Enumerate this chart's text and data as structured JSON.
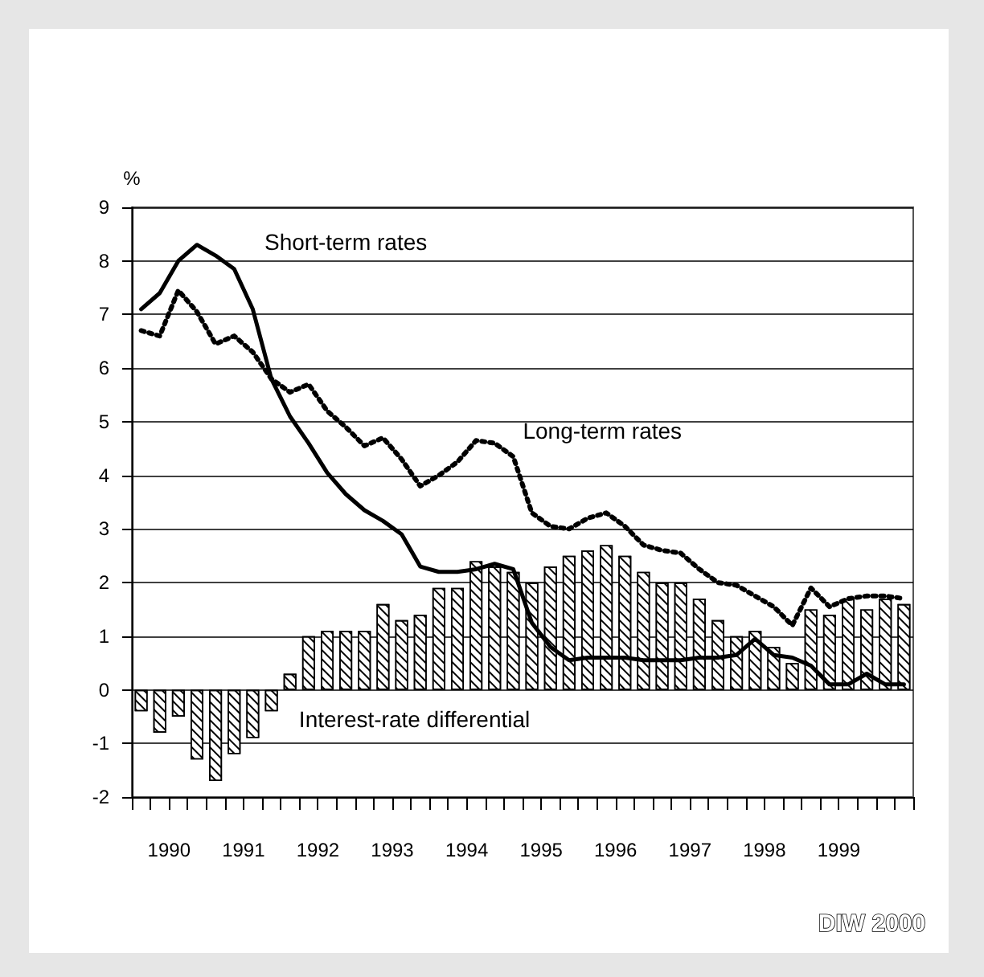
{
  "chart_data": {
    "type": "bar",
    "ylabel": "%",
    "xlim": [
      1990,
      2000.5
    ],
    "ylim": [
      -2,
      9
    ],
    "yticks": [
      -2,
      -1,
      0,
      1,
      2,
      3,
      4,
      5,
      6,
      7,
      8,
      9
    ],
    "grid": "y",
    "xticks": [
      {
        "value": 1990,
        "label": null
      },
      {
        "value": 1990.25,
        "label": null
      },
      {
        "value": 1990.5,
        "label": "1990"
      },
      {
        "value": 1990.75,
        "label": null
      },
      {
        "value": 1991,
        "label": null
      },
      {
        "value": 1991.25,
        "label": null
      },
      {
        "value": 1991.5,
        "label": "1991"
      },
      {
        "value": 1991.75,
        "label": null
      },
      {
        "value": 1992,
        "label": null
      },
      {
        "value": 1992.25,
        "label": null
      },
      {
        "value": 1992.5,
        "label": "1992"
      },
      {
        "value": 1992.75,
        "label": null
      },
      {
        "value": 1993,
        "label": null
      },
      {
        "value": 1993.25,
        "label": null
      },
      {
        "value": 1993.5,
        "label": "1993"
      },
      {
        "value": 1993.75,
        "label": null
      },
      {
        "value": 1994,
        "label": null
      },
      {
        "value": 1994.25,
        "label": null
      },
      {
        "value": 1994.5,
        "label": "1994"
      },
      {
        "value": 1994.75,
        "label": null
      },
      {
        "value": 1995,
        "label": null
      },
      {
        "value": 1995.25,
        "label": null
      },
      {
        "value": 1995.5,
        "label": "1995"
      },
      {
        "value": 1995.75,
        "label": null
      },
      {
        "value": 1996,
        "label": null
      },
      {
        "value": 1996.25,
        "label": null
      },
      {
        "value": 1996.5,
        "label": "1996"
      },
      {
        "value": 1996.75,
        "label": null
      },
      {
        "value": 1997,
        "label": null
      },
      {
        "value": 1997.25,
        "label": null
      },
      {
        "value": 1997.5,
        "label": "1997"
      },
      {
        "value": 1997.75,
        "label": null
      },
      {
        "value": 1998,
        "label": null
      },
      {
        "value": 1998.25,
        "label": null
      },
      {
        "value": 1998.5,
        "label": "1998"
      },
      {
        "value": 1998.75,
        "label": null
      },
      {
        "value": 1999,
        "label": null
      },
      {
        "value": 1999.25,
        "label": null
      },
      {
        "value": 1999.5,
        "label": "1999"
      },
      {
        "value": 1999.75,
        "label": null
      },
      {
        "value": 2000,
        "label": null
      },
      {
        "value": 2000.25,
        "label": null
      },
      {
        "value": 2000.5,
        "label": null
      }
    ],
    "x": [
      1990.125,
      1990.375,
      1990.625,
      1990.875,
      1991.125,
      1991.375,
      1991.625,
      1991.875,
      1992.125,
      1992.375,
      1992.625,
      1992.875,
      1993.125,
      1993.375,
      1993.625,
      1993.875,
      1994.125,
      1994.375,
      1994.625,
      1994.875,
      1995.125,
      1995.375,
      1995.625,
      1995.875,
      1996.125,
      1996.375,
      1996.625,
      1996.875,
      1997.125,
      1997.375,
      1997.625,
      1997.875,
      1998.125,
      1998.375,
      1998.625,
      1998.875,
      1999.125,
      1999.375,
      1999.625,
      1999.875,
      2000.125,
      2000.375
    ],
    "series": [
      {
        "name": "Interest-rate differential",
        "color": "#000000",
        "values": [
          -0.4,
          -0.8,
          -0.5,
          -1.3,
          -1.7,
          -1.2,
          -0.9,
          -0.4,
          0.3,
          1.0,
          1.1,
          1.1,
          1.1,
          1.6,
          1.3,
          1.4,
          1.9,
          1.9,
          2.4,
          2.3,
          2.2,
          2.0,
          2.3,
          2.5,
          2.6,
          2.7,
          2.5,
          2.2,
          2.0,
          2.0,
          1.7,
          1.3,
          1.0,
          1.1,
          0.8,
          0.5,
          1.5,
          1.4,
          1.7,
          1.5,
          1.7,
          1.6
        ]
      },
      {
        "name": "Short-term rates",
        "type": "line",
        "color": "#000000",
        "line_style": "solid",
        "values": [
          7.1,
          7.4,
          8.0,
          8.3,
          8.1,
          7.85,
          7.1,
          5.8,
          5.1,
          4.6,
          4.05,
          3.65,
          3.35,
          3.15,
          2.9,
          2.3,
          2.2,
          2.2,
          2.25,
          2.35,
          2.25,
          1.25,
          0.8,
          0.55,
          0.6,
          0.6,
          0.6,
          0.55,
          0.55,
          0.55,
          0.6,
          0.6,
          0.65,
          0.95,
          0.65,
          0.6,
          0.45,
          0.1,
          0.1,
          0.3,
          0.1,
          0.1
        ]
      },
      {
        "name": "Long-term rates",
        "type": "line",
        "color": "#000000",
        "line_style": "dotted",
        "values": [
          6.7,
          6.6,
          7.45,
          7.05,
          6.45,
          6.6,
          6.3,
          5.8,
          5.55,
          5.7,
          5.2,
          4.9,
          4.55,
          4.7,
          4.3,
          3.8,
          4.0,
          4.25,
          4.65,
          4.6,
          4.35,
          3.3,
          3.05,
          3.0,
          3.2,
          3.3,
          3.05,
          2.7,
          2.6,
          2.55,
          2.25,
          2.0,
          1.95,
          1.75,
          1.55,
          1.2,
          1.9,
          1.55,
          1.7,
          1.75,
          1.75,
          1.7
        ]
      }
    ],
    "annotations": [
      "DIW 2000"
    ]
  }
}
